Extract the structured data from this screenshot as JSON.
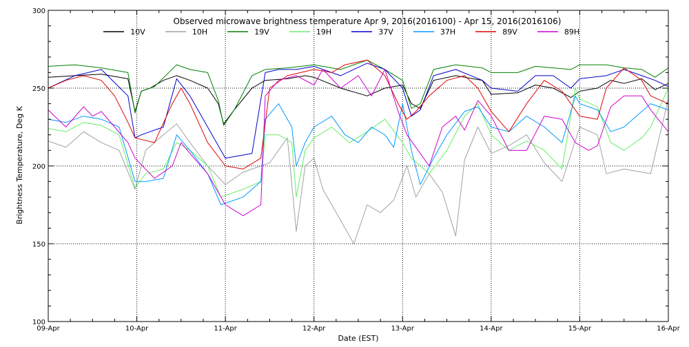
{
  "chart_data": {
    "type": "line",
    "title": "Observed microwave brightness temperature Apr  9, 2016(2016100) - Apr 15, 2016(2016106)",
    "xlabel": "Date (EST)",
    "ylabel": "Brightness Temperature, Deg K",
    "xlim": [
      0,
      7
    ],
    "ylim": [
      100,
      300
    ],
    "x_ticks": [
      {
        "x": 0,
        "label": "09-Apr"
      },
      {
        "x": 1,
        "label": "10-Apr"
      },
      {
        "x": 2,
        "label": "11-Apr"
      },
      {
        "x": 3,
        "label": "12-Apr"
      },
      {
        "x": 4,
        "label": "13-Apr"
      },
      {
        "x": 5,
        "label": "14-Apr"
      },
      {
        "x": 6,
        "label": "15-Apr"
      },
      {
        "x": 7,
        "label": "16-Apr"
      }
    ],
    "y_ticks": [
      100,
      150,
      200,
      250,
      300
    ],
    "grid": "dotted",
    "legend_position": "top",
    "series": [
      {
        "name": "10V",
        "color": "#000000",
        "x": [
          0,
          0.3,
          0.6,
          0.9,
          0.98,
          1.05,
          1.15,
          1.3,
          1.45,
          1.6,
          1.8,
          1.92,
          1.98,
          2.1,
          2.3,
          2.45,
          2.7,
          2.9,
          3.0,
          3.3,
          3.6,
          3.8,
          4.0,
          4.1,
          4.2,
          4.35,
          4.6,
          4.9,
          5.0,
          5.3,
          5.5,
          5.7,
          5.9,
          6.0,
          6.2,
          6.35,
          6.5,
          6.7,
          6.85,
          7.0
        ],
        "y": [
          257,
          258,
          259,
          256,
          235,
          248,
          250,
          255,
          258,
          255,
          250,
          240,
          227,
          236,
          250,
          255,
          256,
          258,
          257,
          250,
          245,
          250,
          252,
          240,
          237,
          255,
          258,
          255,
          246,
          247,
          252,
          250,
          244,
          248,
          250,
          255,
          253,
          256,
          249,
          253
        ]
      },
      {
        "name": "10H",
        "color": "#a0a0a0",
        "x": [
          0,
          0.2,
          0.4,
          0.6,
          0.8,
          0.98,
          1.1,
          1.3,
          1.45,
          1.6,
          1.8,
          2.0,
          2.2,
          2.5,
          2.7,
          2.8,
          2.9,
          3.0,
          3.1,
          3.25,
          3.45,
          3.6,
          3.75,
          3.9,
          4.05,
          4.15,
          4.3,
          4.45,
          4.6,
          4.7,
          4.85,
          5.0,
          5.2,
          5.4,
          5.6,
          5.8,
          6.0,
          6.2,
          6.3,
          6.5,
          6.8,
          7.0
        ],
        "y": [
          216,
          212,
          222,
          215,
          210,
          185,
          210,
          220,
          227,
          215,
          200,
          188,
          196,
          202,
          218,
          158,
          200,
          205,
          185,
          170,
          150,
          175,
          170,
          178,
          200,
          180,
          195,
          183,
          155,
          204,
          225,
          208,
          213,
          220,
          202,
          190,
          225,
          220,
          195,
          198,
          195,
          243
        ]
      },
      {
        "name": "19V",
        "color": "#008000",
        "x": [
          0,
          0.3,
          0.6,
          0.9,
          0.98,
          1.05,
          1.2,
          1.45,
          1.6,
          1.8,
          1.92,
          1.98,
          2.1,
          2.3,
          2.45,
          2.7,
          3.0,
          3.3,
          3.6,
          3.8,
          4.0,
          4.1,
          4.2,
          4.35,
          4.6,
          4.9,
          5.0,
          5.3,
          5.5,
          5.7,
          5.9,
          6.0,
          6.3,
          6.5,
          6.7,
          6.85,
          7.0
        ],
        "y": [
          264,
          265,
          263,
          260,
          234,
          248,
          251,
          265,
          262,
          260,
          242,
          226,
          236,
          258,
          262,
          263,
          265,
          262,
          268,
          262,
          255,
          237,
          240,
          262,
          265,
          263,
          260,
          260,
          264,
          263,
          262,
          265,
          265,
          263,
          262,
          257,
          263
        ]
      },
      {
        "name": "19H",
        "color": "#66ee66",
        "x": [
          0,
          0.2,
          0.4,
          0.6,
          0.8,
          0.98,
          1.1,
          1.3,
          1.45,
          1.6,
          1.8,
          1.95,
          2.2,
          2.4,
          2.45,
          2.6,
          2.75,
          2.8,
          2.9,
          3.0,
          3.2,
          3.4,
          3.6,
          3.8,
          4.0,
          4.1,
          4.2,
          4.3,
          4.5,
          4.7,
          4.85,
          5.0,
          5.2,
          5.4,
          5.6,
          5.8,
          5.95,
          6.0,
          6.2,
          6.35,
          6.5,
          6.7,
          6.8,
          7.0
        ],
        "y": [
          224,
          222,
          228,
          226,
          220,
          186,
          195,
          198,
          215,
          210,
          200,
          180,
          185,
          190,
          220,
          220,
          215,
          180,
          210,
          218,
          225,
          215,
          222,
          230,
          215,
          205,
          200,
          195,
          210,
          232,
          240,
          220,
          210,
          216,
          210,
          198,
          250,
          243,
          238,
          215,
          210,
          218,
          225,
          250
        ]
      },
      {
        "name": "37V",
        "color": "#0000cc",
        "x": [
          0,
          0.3,
          0.6,
          0.9,
          0.98,
          1.05,
          1.3,
          1.45,
          1.6,
          1.8,
          2.0,
          2.3,
          2.45,
          2.6,
          2.8,
          3.0,
          3.3,
          3.6,
          3.8,
          4.0,
          4.1,
          4.2,
          4.35,
          4.6,
          4.9,
          5.0,
          5.3,
          5.5,
          5.7,
          5.9,
          6.0,
          6.3,
          6.5,
          6.7,
          6.85,
          7.0
        ],
        "y": [
          250,
          258,
          262,
          245,
          218,
          220,
          225,
          256,
          245,
          225,
          205,
          208,
          260,
          262,
          262,
          264,
          258,
          266,
          262,
          250,
          232,
          236,
          258,
          262,
          255,
          250,
          248,
          258,
          258,
          250,
          256,
          258,
          262,
          258,
          255,
          251
        ]
      },
      {
        "name": "37H",
        "color": "#0099ff",
        "x": [
          0,
          0.2,
          0.4,
          0.6,
          0.8,
          0.98,
          1.1,
          1.3,
          1.45,
          1.6,
          1.8,
          1.95,
          2.2,
          2.4,
          2.45,
          2.6,
          2.75,
          2.8,
          2.9,
          3.0,
          3.2,
          3.35,
          3.5,
          3.65,
          3.8,
          3.9,
          4.0,
          4.1,
          4.2,
          4.35,
          4.5,
          4.7,
          4.85,
          5.0,
          5.2,
          5.4,
          5.6,
          5.8,
          5.95,
          6.0,
          6.2,
          6.35,
          6.5,
          6.7,
          6.8,
          7.0
        ],
        "y": [
          230,
          228,
          232,
          230,
          225,
          190,
          190,
          192,
          220,
          210,
          195,
          175,
          180,
          190,
          230,
          240,
          225,
          200,
          215,
          225,
          232,
          220,
          215,
          225,
          220,
          212,
          240,
          210,
          188,
          205,
          220,
          235,
          238,
          225,
          222,
          232,
          225,
          215,
          245,
          240,
          236,
          222,
          225,
          235,
          240,
          236
        ]
      },
      {
        "name": "89V",
        "color": "#dd0000",
        "x": [
          0,
          0.2,
          0.4,
          0.6,
          0.75,
          0.9,
          0.98,
          1.2,
          1.4,
          1.5,
          1.6,
          1.8,
          2.0,
          2.2,
          2.4,
          2.5,
          2.7,
          3.0,
          3.2,
          3.35,
          3.6,
          3.8,
          3.95,
          4.05,
          4.15,
          4.3,
          4.5,
          4.7,
          4.85,
          5.0,
          5.2,
          5.4,
          5.6,
          5.8,
          6.0,
          6.2,
          6.3,
          6.5,
          6.7,
          6.8,
          7.0
        ],
        "y": [
          250,
          255,
          258,
          255,
          245,
          228,
          218,
          215,
          240,
          250,
          240,
          215,
          200,
          198,
          205,
          250,
          258,
          262,
          260,
          265,
          268,
          258,
          240,
          230,
          235,
          245,
          255,
          258,
          250,
          235,
          222,
          240,
          255,
          248,
          232,
          230,
          250,
          263,
          255,
          245,
          240
        ]
      },
      {
        "name": "89H",
        "color": "#cc00cc",
        "x": [
          0,
          0.2,
          0.4,
          0.5,
          0.6,
          0.75,
          0.9,
          0.98,
          1.2,
          1.4,
          1.5,
          1.6,
          1.8,
          2.0,
          2.2,
          2.4,
          2.45,
          2.6,
          2.8,
          3.0,
          3.1,
          3.3,
          3.5,
          3.65,
          3.8,
          3.95,
          4.05,
          4.15,
          4.3,
          4.45,
          4.6,
          4.7,
          4.85,
          5.0,
          5.2,
          5.4,
          5.6,
          5.8,
          5.95,
          6.1,
          6.2,
          6.35,
          6.5,
          6.7,
          6.8,
          7.0
        ],
        "y": [
          236,
          225,
          238,
          232,
          235,
          225,
          215,
          205,
          192,
          200,
          215,
          208,
          195,
          175,
          168,
          175,
          245,
          255,
          258,
          252,
          262,
          250,
          258,
          245,
          262,
          235,
          220,
          212,
          200,
          225,
          232,
          223,
          242,
          232,
          210,
          210,
          232,
          230,
          215,
          210,
          213,
          238,
          245,
          245,
          236,
          222
        ]
      }
    ]
  }
}
